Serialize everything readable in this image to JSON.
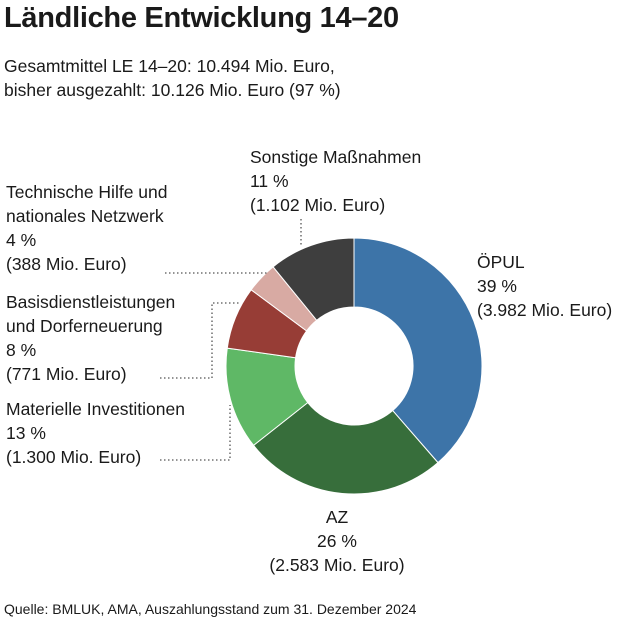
{
  "title": "Ländliche Entwicklung 14–20",
  "subtitle": {
    "line1": "Gesamtmittel LE 14–20: 10.494 Mio. Euro,",
    "line2": "bisher ausgezahlt: 10.126 Mio. Euro (97 %)"
  },
  "source": "Quelle: BMLUK, AMA, Auszahlungsstand zum 31. Dezember 2024",
  "chart_data": {
    "type": "pie",
    "variant": "donut",
    "start_angle_deg": 0,
    "direction": "clockwise",
    "slices": [
      {
        "name": "ÖPUL",
        "percent": 39,
        "percent_label": "39 %",
        "value": 3982,
        "value_label": "(3.982 Mio. Euro)",
        "color": "#3d74a8"
      },
      {
        "name": "AZ",
        "percent": 26,
        "percent_label": "26 %",
        "value": 2583,
        "value_label": "(2.583 Mio. Euro)",
        "color": "#376e3b"
      },
      {
        "name": "Materielle Investitionen",
        "percent": 13,
        "percent_label": "13 %",
        "value": 1300,
        "value_label": "(1.300 Mio. Euro)",
        "color": "#5fb866"
      },
      {
        "name": "Basisdienstleistungen und Dorferneuerung",
        "name_line1": "Basisdienstleistungen",
        "name_line2": "und Dorferneuerung",
        "percent": 8,
        "percent_label": "8 %",
        "value": 771,
        "value_label": "(771 Mio. Euro)",
        "color": "#973d36"
      },
      {
        "name": "Technische Hilfe und nationales Netzwerk",
        "name_line1": "Technische Hilfe und",
        "name_line2": "nationales Netzwerk",
        "percent": 4,
        "percent_label": "4 %",
        "value": 388,
        "value_label": "(388 Mio. Euro)",
        "color": "#d8aaa3"
      },
      {
        "name": "Sonstige Maßnahmen",
        "percent": 11,
        "percent_label": "11 %",
        "value": 1102,
        "value_label": "(1.102 Mio. Euro)",
        "color": "#3e3e3e"
      }
    ]
  }
}
